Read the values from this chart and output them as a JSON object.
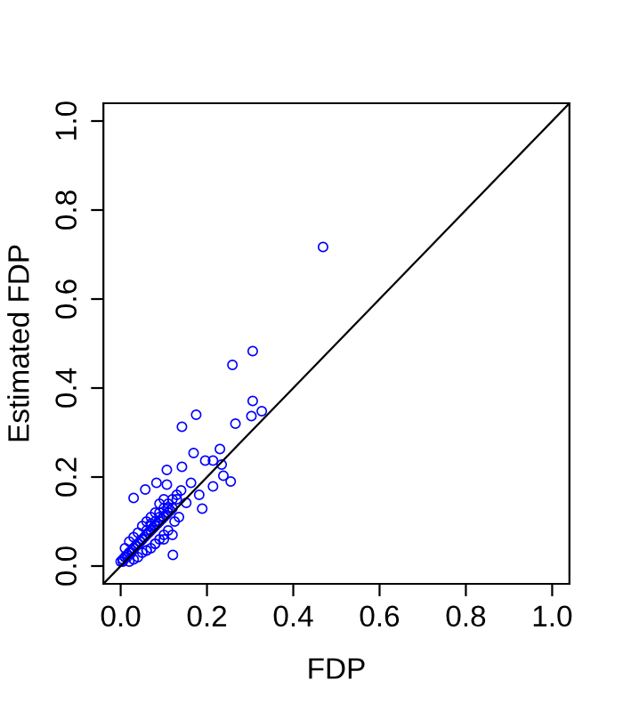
{
  "chart_data": {
    "type": "scatter",
    "xlabel": "FDP",
    "ylabel": "Estimated FDP",
    "xlim": [
      -0.04,
      1.04
    ],
    "ylim": [
      -0.04,
      1.04
    ],
    "xticks": [
      {
        "value": 0,
        "label": "0.0"
      },
      0.2,
      0.4,
      0.6,
      0.8,
      {
        "value": 1,
        "label": "1.0"
      }
    ],
    "yticks": [
      {
        "value": 0,
        "label": "0.0"
      },
      0.2,
      0.4,
      0.6,
      0.8,
      {
        "value": 1,
        "label": "1.0"
      }
    ],
    "grid": false,
    "series": [
      {
        "color": "#0000ff",
        "marker": "circle",
        "x": [
          0.469,
          0.306,
          0.259,
          0.306,
          0.327,
          0.303,
          0.266,
          0.175,
          0.142,
          0.169,
          0.23,
          0.196,
          0.214,
          0.234,
          0.255,
          0.214,
          0.238,
          0.182,
          0.189,
          0.163,
          0.142,
          0.107,
          0.083,
          0.121,
          0.03,
          0.057,
          0.107,
          0.152,
          0.01,
          0.02,
          0.03,
          0.04,
          0.05,
          0.06,
          0.07,
          0.08,
          0.09,
          0.1,
          0.11,
          0.12,
          0.005,
          0.015,
          0.025,
          0.035,
          0.045,
          0.055,
          0.065,
          0.075,
          0.085,
          0.095,
          0.105,
          0.115,
          0.01,
          0.02,
          0.03,
          0.04,
          0.05,
          0.06,
          0.07,
          0.08,
          0.09,
          0.1,
          0.0,
          0.005,
          0.01,
          0.015,
          0.02,
          0.025,
          0.03,
          0.035,
          0.04,
          0.045,
          0.05,
          0.06,
          0.07,
          0.08,
          0.09,
          0.1,
          0.11,
          0.12,
          0.13,
          0.14,
          0.02,
          0.03,
          0.04,
          0.05,
          0.06,
          0.07,
          0.08,
          0.09,
          0.1,
          0.11,
          0.125,
          0.135,
          0.06,
          0.08,
          0.1,
          0.12,
          0.07,
          0.09,
          0.11,
          0.13
        ],
        "values": [
          0.717,
          0.483,
          0.452,
          0.371,
          0.348,
          0.337,
          0.32,
          0.34,
          0.313,
          0.254,
          0.263,
          0.237,
          0.237,
          0.228,
          0.19,
          0.179,
          0.203,
          0.16,
          0.129,
          0.187,
          0.223,
          0.216,
          0.187,
          0.025,
          0.153,
          0.172,
          0.183,
          0.142,
          0.02,
          0.03,
          0.04,
          0.05,
          0.06,
          0.07,
          0.08,
          0.09,
          0.1,
          0.11,
          0.12,
          0.13,
          0.01,
          0.02,
          0.03,
          0.045,
          0.055,
          0.065,
          0.075,
          0.085,
          0.095,
          0.105,
          0.115,
          0.125,
          0.04,
          0.055,
          0.065,
          0.075,
          0.09,
          0.1,
          0.11,
          0.12,
          0.14,
          0.15,
          0.01,
          0.015,
          0.02,
          0.025,
          0.03,
          0.035,
          0.04,
          0.045,
          0.05,
          0.055,
          0.06,
          0.08,
          0.095,
          0.1,
          0.12,
          0.13,
          0.14,
          0.15,
          0.16,
          0.17,
          0.01,
          0.015,
          0.02,
          0.03,
          0.035,
          0.04,
          0.05,
          0.06,
          0.07,
          0.08,
          0.1,
          0.11,
          0.035,
          0.05,
          0.06,
          0.07,
          0.09,
          0.11,
          0.13,
          0.15
        ]
      },
      {
        "type": "line",
        "color": "#000000",
        "line_style": "solid",
        "x": [
          -0.04,
          1.04
        ],
        "values": [
          -0.04,
          1.04
        ]
      }
    ]
  }
}
